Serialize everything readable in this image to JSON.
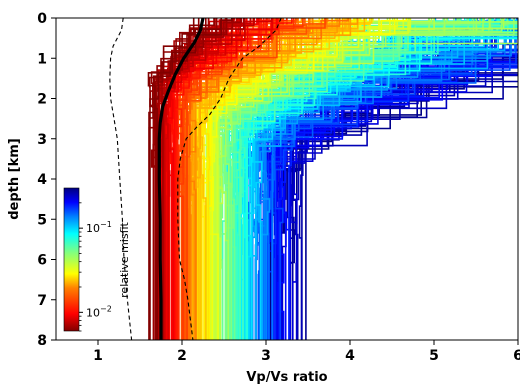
{
  "chart_data": {
    "type": "line",
    "xlabel": "Vp/Vs ratio",
    "ylabel": "depth [km]",
    "xlim": [
      0.5,
      6
    ],
    "ylim": [
      8,
      0
    ],
    "y_inverted": true,
    "x_ticks": [
      1,
      2,
      3,
      4,
      5,
      6
    ],
    "x_tick_labels": [
      "1",
      "2",
      "3",
      "4",
      "5",
      "6"
    ],
    "y_ticks": [
      0,
      1,
      2,
      3,
      4,
      5,
      6,
      7,
      8
    ],
    "y_tick_labels": [
      "0",
      "1",
      "2",
      "3",
      "4",
      "5",
      "6",
      "7",
      "8"
    ],
    "grid": false,
    "colorbar": {
      "label": "relative misfit",
      "colormap": "jet_r",
      "scale": "log",
      "range": [
        0.006,
        0.3
      ],
      "tick_labels": [
        {
          "base": "10",
          "exp": "−1",
          "value": 0.1
        },
        {
          "base": "10",
          "exp": "−2",
          "value": 0.01
        }
      ],
      "placement": "inside lower-left"
    },
    "series": [
      {
        "role": "best-model",
        "style": "solid-black-thick",
        "depth": [
          0,
          0.3,
          0.6,
          1.0,
          1.4,
          1.8,
          2.2,
          2.6,
          3.0,
          3.5,
          4.0,
          5.0,
          6.0,
          7.0,
          8.0
        ],
        "vpvs": [
          2.25,
          2.22,
          2.15,
          2.02,
          1.92,
          1.84,
          1.77,
          1.74,
          1.73,
          1.73,
          1.73,
          1.74,
          1.74,
          1.75,
          1.75
        ]
      },
      {
        "role": "left-bound",
        "style": "dashed-black-thin",
        "depth": [
          0,
          0.3,
          0.7,
          1.0,
          1.5,
          2.0,
          2.5,
          3.0,
          4.0,
          5.0,
          6.0,
          7.0,
          8.0
        ],
        "vpvs": [
          1.3,
          1.28,
          1.18,
          1.15,
          1.14,
          1.15,
          1.19,
          1.23,
          1.26,
          1.29,
          1.31,
          1.35,
          1.4
        ]
      },
      {
        "role": "right-bound",
        "style": "dashed-black-thin",
        "depth": [
          0,
          0.3,
          0.7,
          1.0,
          1.5,
          2.0,
          2.4,
          2.7,
          3.0,
          3.5,
          4.0,
          5.0,
          6.0,
          6.5,
          7.0,
          8.0
        ],
        "vpvs": [
          3.18,
          3.12,
          2.92,
          2.72,
          2.56,
          2.46,
          2.33,
          2.18,
          2.05,
          1.98,
          1.95,
          1.95,
          1.97,
          2.03,
          2.07,
          2.13
        ]
      }
    ],
    "ensemble": {
      "description": "many step models colored by relative misfit",
      "x_range_low_misfit": [
        1.6,
        2.6
      ],
      "x_range_high_misfit": [
        1.6,
        6.0
      ],
      "misfit_range": [
        0.006,
        0.3
      ]
    }
  }
}
